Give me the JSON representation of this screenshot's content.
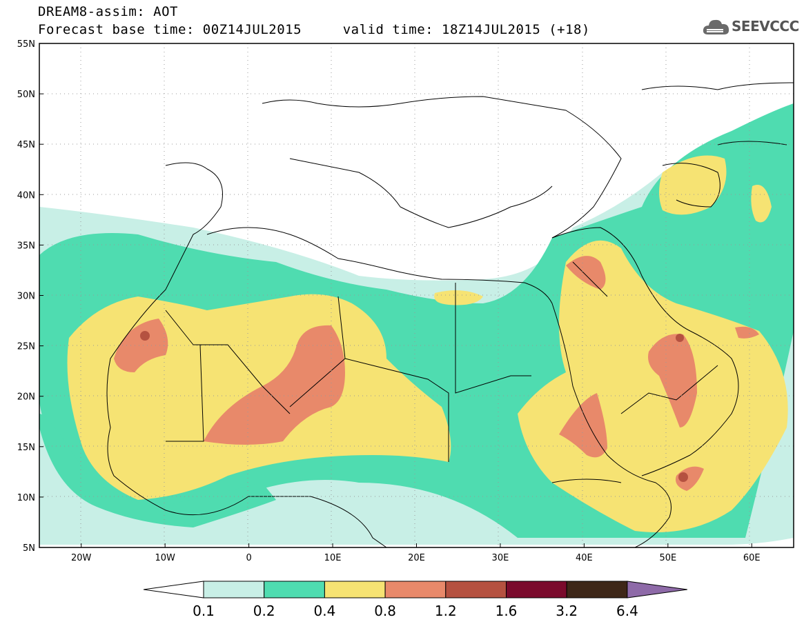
{
  "title": {
    "line1": "DREAM8-assim: AOT",
    "line2": "Forecast base time: 00Z14JUL2015     valid time: 18Z14JUL2015 (+18)"
  },
  "logo": {
    "text": "SEEVCCC",
    "icon": "cloud-logo-icon"
  },
  "map": {
    "lat_labels": [
      "55N",
      "50N",
      "45N",
      "40N",
      "35N",
      "30N",
      "25N",
      "20N",
      "15N",
      "10N",
      "5N"
    ],
    "lon_labels": [
      "20W",
      "10W",
      "0",
      "10E",
      "20E",
      "30E",
      "40E",
      "50E",
      "60E"
    ],
    "lat_range": [
      5,
      55
    ],
    "lon_range": [
      -25,
      65
    ],
    "grid": "dotted"
  },
  "colorbar": {
    "labels": [
      "0.1",
      "0.2",
      "0.4",
      "0.8",
      "1.2",
      "1.6",
      "3.2",
      "6.4"
    ],
    "colors": {
      "lt01": "#ffffff",
      "c01": "#c8efe6",
      "c02": "#4fdcb0",
      "c04": "#f6e373",
      "c08": "#e8896a",
      "c12": "#b55140",
      "c16": "#7a0a2c",
      "c32": "#3e2718",
      "gt64": "#8e6aa8"
    }
  }
}
